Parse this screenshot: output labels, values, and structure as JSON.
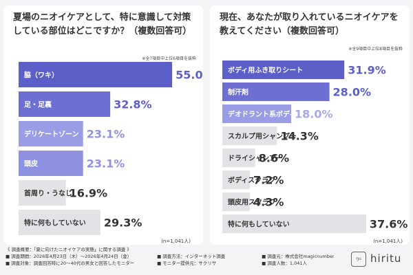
{
  "left": {
    "title": "夏場のニオイケアとして、特に意識して対策している部位はどこですか？（複数回答可）",
    "note": "※全7項目中上位6項目を抜粋",
    "n": "(n=1,041人)"
  },
  "right": {
    "title": "現在、あなたが取り入れているニオイケアを教えてください（複数回答可）",
    "note": "※全9項目中上位8項目を抜粋",
    "n": "(n=1,041人)"
  },
  "chart_data": [
    {
      "type": "bar",
      "orientation": "horizontal",
      "title": "夏場のニオイケアとして、特に意識して対策している部位はどこですか？（複数回答可）",
      "categories": [
        "脇（ワキ）",
        "足・足裏",
        "デリケートゾーン",
        "頭皮",
        "首周り・うなじ",
        "特に何もしていない"
      ],
      "values": [
        55.0,
        32.8,
        23.1,
        23.1,
        16.9,
        29.3
      ],
      "value_labels": [
        "55.0%",
        "32.8%",
        "23.1%",
        "23.1%",
        "16.9%",
        "29.3%"
      ],
      "unit": "%",
      "xlim": [
        0,
        70
      ],
      "colors": [
        "#5b5fc7",
        "#6d70d1",
        "#9a9de6",
        "#8e91e0",
        "#e3e3e7",
        "#e3e3e7"
      ],
      "label_colors": [
        "#ffffff",
        "#ffffff",
        "#ffffff",
        "#ffffff",
        "#333333",
        "#333333"
      ],
      "value_colors": [
        "#5b5fc7",
        "#5b5fc7",
        "#8f92de",
        "#8f92de",
        "#333333",
        "#333333"
      ],
      "n": "(n=1,041人)"
    },
    {
      "type": "bar",
      "orientation": "horizontal",
      "title": "現在、あなたが取り入れているニオイケアを教えてください（複数回答可）",
      "categories": [
        "ボディ用ふき取りシート",
        "制汗剤",
        "デオドラント系ボディソープ",
        "スカルプ用シャンプー",
        "ドライシャンプー",
        "ボディスクラブ",
        "頭皮用スクラブ",
        "特に何もしていない"
      ],
      "values": [
        31.9,
        28.0,
        18.0,
        14.3,
        8.6,
        7.2,
        4.3,
        37.6
      ],
      "value_labels": [
        "31.9%",
        "28.0%",
        "18.0%",
        "14.3%",
        "8.6%",
        "7.2%",
        "4.3%",
        "37.6%"
      ],
      "unit": "%",
      "xlim": [
        0,
        45
      ],
      "colors": [
        "#5b5fc7",
        "#6d70d1",
        "#9a9de6",
        "#e3e3e7",
        "#e3e3e7",
        "#e3e3e7",
        "#e3e3e7",
        "#e3e3e7"
      ],
      "label_colors": [
        "#ffffff",
        "#ffffff",
        "#ffffff",
        "#333333",
        "#333333",
        "#333333",
        "#333333",
        "#333333"
      ],
      "value_colors": [
        "#5b5fc7",
        "#5b5fc7",
        "#a7a9e6",
        "#333333",
        "#333333",
        "#333333",
        "#333333",
        "#333333"
      ],
      "n": "(n=1,041人)"
    }
  ],
  "footer": {
    "headline": "《 調査概要：「夏に向けたニオイケアの実態」に関する調査 》",
    "period": "■ 調査期間：2026年4月23日（木）〜2026年4月24日（金）",
    "method": "■ 調査方法：インターネット調査",
    "organizer": "■ 調査元：株式会社magicnumber",
    "target": "■ 調査対象：調査回答時に20〜40代の男女と回答したモニター",
    "provider": "■ モニター提供元：サクリサ",
    "count": "■ 調査人数：1,041人"
  },
  "logo": {
    "mark": "ŋu",
    "text": "hiritu"
  }
}
